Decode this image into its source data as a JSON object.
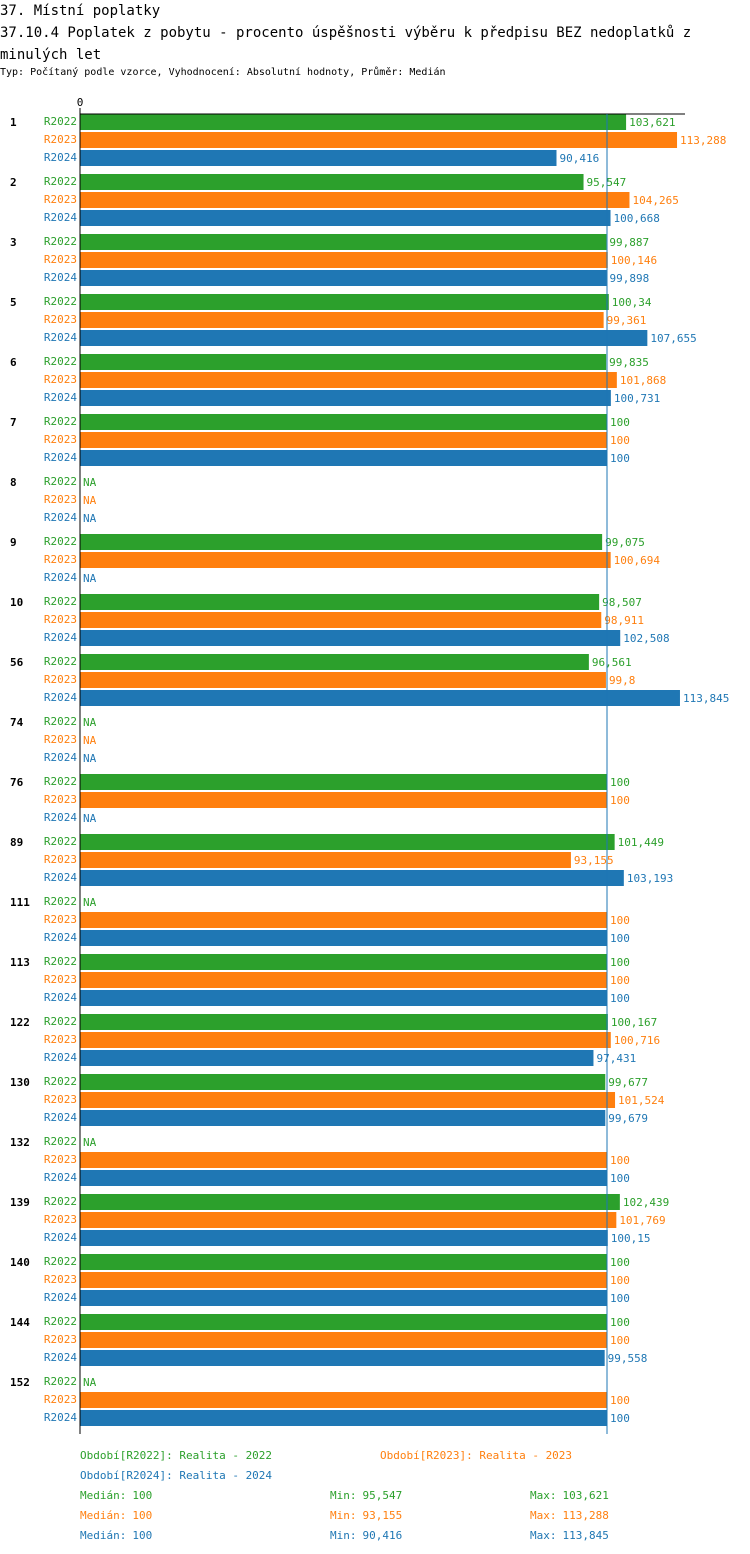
{
  "chart_data": {
    "type": "hbar",
    "title": "37. Místní poplatky",
    "subtitle": "37.10.4 Poplatek z pobytu - procento úspěšnosti výběru k předpisu BEZ nedoplatků z minulých let",
    "note": "Typ: Počítaný podle vzorce, Vyhodnocení: Absolutní hodnoty, Průměr: Medián",
    "categories": [
      "1",
      "2",
      "3",
      "5",
      "6",
      "7",
      "8",
      "9",
      "10",
      "56",
      "74",
      "76",
      "89",
      "111",
      "113",
      "122",
      "130",
      "132",
      "139",
      "140",
      "144",
      "152"
    ],
    "xlim": [
      0,
      114.8
    ],
    "xticks": [
      0
    ],
    "stat_labels": {
      "median": "Medián:",
      "min": "Min:",
      "max": "Max:"
    },
    "series": [
      {
        "name": "Období[R2022]: Realita - 2022",
        "short": "R2022",
        "color": "#2ca02c",
        "values": [
          103.621,
          95.547,
          99.887,
          100.34,
          99.835,
          100,
          null,
          99.075,
          98.507,
          96.561,
          null,
          100,
          101.449,
          null,
          100,
          100.167,
          99.677,
          null,
          102.439,
          100,
          100,
          null
        ],
        "value_labels": [
          "103,621",
          "95,547",
          "99,887",
          "100,34",
          "99,835",
          "100",
          "NA",
          "99,075",
          "98,507",
          "96,561",
          "NA",
          "100",
          "101,449",
          "NA",
          "100",
          "100,167",
          "99,677",
          "NA",
          "102,439",
          "100",
          "100",
          "NA"
        ],
        "median": 100,
        "min": 95.547,
        "min_label": "95,547",
        "max": 103.621,
        "max_label": "103,621"
      },
      {
        "name": "Období[R2023]: Realita - 2023",
        "short": "R2023",
        "color": "#ff7f0e",
        "values": [
          113.288,
          104.265,
          100.146,
          99.361,
          101.868,
          100,
          null,
          100.694,
          98.911,
          99.8,
          null,
          100,
          93.155,
          100,
          100,
          100.716,
          101.524,
          100,
          101.769,
          100,
          100,
          100
        ],
        "value_labels": [
          "113,288",
          "104,265",
          "100,146",
          "99,361",
          "101,868",
          "100",
          "NA",
          "100,694",
          "98,911",
          "99,8",
          "NA",
          "100",
          "93,155",
          "100",
          "100",
          "100,716",
          "101,524",
          "100",
          "101,769",
          "100",
          "100",
          "100"
        ],
        "median": 100,
        "min": 93.155,
        "min_label": "93,155",
        "max": 113.288,
        "max_label": "113,288"
      },
      {
        "name": "Období[R2024]: Realita - 2024",
        "short": "R2024",
        "color": "#1f77b4",
        "values": [
          90.416,
          100.668,
          99.898,
          107.655,
          100.731,
          100,
          null,
          null,
          102.508,
          113.845,
          null,
          null,
          103.193,
          100,
          100,
          97.431,
          99.679,
          100,
          100.15,
          100,
          99.558,
          100
        ],
        "value_labels": [
          "90,416",
          "100,668",
          "99,898",
          "107,655",
          "100,731",
          "100",
          "NA",
          "NA",
          "102,508",
          "113,845",
          "NA",
          "NA",
          "103,193",
          "100",
          "100",
          "97,431",
          "99,679",
          "100",
          "100,15",
          "100",
          "99,558",
          "100"
        ],
        "median": 100,
        "min": 90.416,
        "min_label": "90,416",
        "max": 113.845,
        "max_label": "113,845"
      }
    ]
  }
}
